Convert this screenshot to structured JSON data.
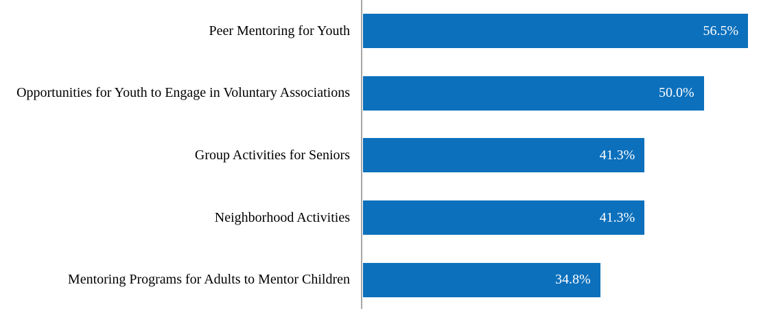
{
  "chart_data": {
    "type": "bar",
    "orientation": "horizontal",
    "title": "",
    "xlabel": "",
    "ylabel": "",
    "categories": [
      "Peer Mentoring for Youth",
      "Opportunities for Youth to Engage in Voluntary Associations",
      "Group Activities for Seniors",
      "Neighborhood Activities",
      "Mentoring Programs for Adults to Mentor Children"
    ],
    "values": [
      56.5,
      50.0,
      41.3,
      41.3,
      34.8
    ],
    "value_labels": [
      "56.5%",
      "50.0%",
      "41.3%",
      "41.3%",
      "34.8%"
    ],
    "xlim": [
      0,
      60
    ],
    "grid": false,
    "legend": false,
    "data_labels_position": "inside-end",
    "colors": {
      "bar": "#0C70BC",
      "axis_line": "#A6A6A6",
      "category_label": "#000000",
      "value_label": "#FFFFFF"
    }
  }
}
